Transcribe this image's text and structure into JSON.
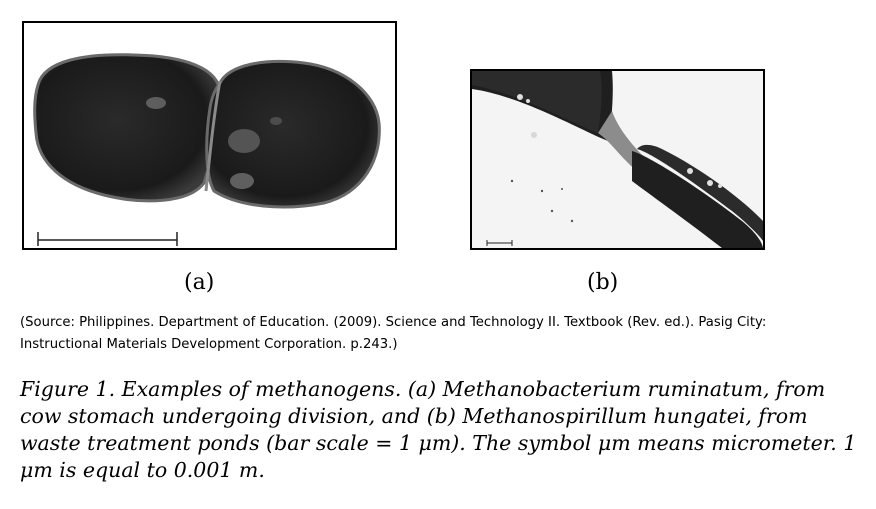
{
  "figure": {
    "panel_a_label": "(a)",
    "panel_b_label": "(b)",
    "source": "(Source: Philippines. Department of Education. (2009). Science and Technology II. Textbook (Rev. ed.).  Pasig City:  Instructional Materials Development Corporation. p.243.)",
    "caption": "Figure 1. Examples of methanogens. (a) Methanobacterium ruminatum, from cow stomach undergoing division, and (b) Methanospirillum hungatei, from waste treatment ponds (bar scale = 1 μm). The symbol μm means micrometer. 1 μm is equal to 0.001 m."
  },
  "images": {
    "panel_a": "micrograph-methanobacterium-ruminatum",
    "panel_b": "micrograph-methanospirillum-hungatei"
  }
}
